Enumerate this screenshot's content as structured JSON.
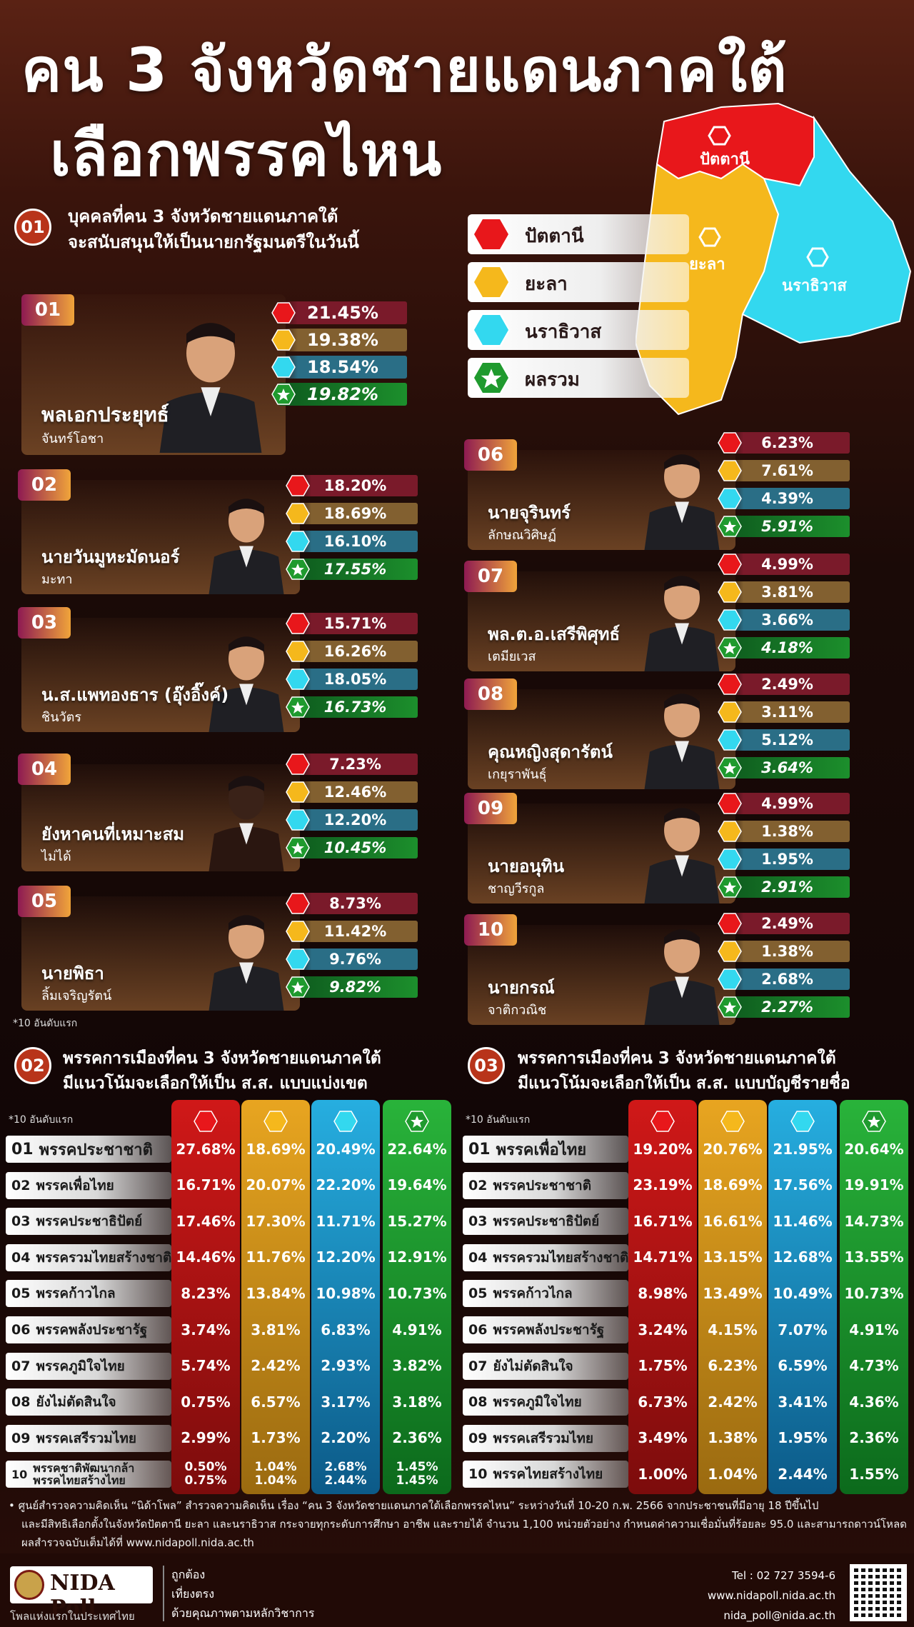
{
  "header": {
    "title_line1": "คน 3 จังหวัดชายแดนภาคใต้",
    "title_line2": "เลือกพรรคไหน"
  },
  "colors": {
    "pattani": "#e8171b",
    "yala": "#f5b81c",
    "narathiwat": "#33d8ef",
    "total": "#1f9a2e"
  },
  "map": {
    "labels": {
      "pattani": "ปัตตานี",
      "yala": "ยะลา",
      "narathiwat": "นราธิวาส"
    }
  },
  "legend": [
    {
      "name": "ปัตตานี",
      "icon": "red-hexagon-icon"
    },
    {
      "name": "ยะลา",
      "icon": "yellow-hexagon-icon"
    },
    {
      "name": "นราธิวาส",
      "icon": "cyan-hexagon-icon"
    },
    {
      "name": "ผลรวม",
      "icon": "green-star-hexagon-icon"
    }
  ],
  "section1": {
    "num": "01",
    "title_line1": "บุคคลที่คน 3 จังหวัดชายแดนภาคใต้",
    "title_line2": "จะสนับสนุนให้เป็นนายกรัฐมนตรีในวันนี้",
    "note": "*10 อันดับแรก"
  },
  "section2": {
    "num": "02",
    "title_line1": "พรรคการเมืองที่คน 3 จังหวัดชายแดนภาคใต้",
    "title_line2": "มีแนวโน้มจะเลือกให้เป็น ส.ส. แบบแบ่งเขต",
    "note": "*10 อันดับแรก"
  },
  "section3": {
    "num": "03",
    "title_line1": "พรรคการเมืองที่คน 3 จังหวัดชายแดนภาคใต้",
    "title_line2": "มีแนวโน้มจะเลือกให้เป็น ส.ส. แบบบัญชีรายชื่อ",
    "note": "*10 อันดับแรก"
  },
  "footer": {
    "line1": "• ศูนย์สำรวจความคิดเห็น “นิด้าโพล” สำรวจความคิดเห็น เรื่อง “คน 3 จังหวัดชายแดนภาคใต้เลือกพรรคไหน” ระหว่างวันที่ 10-20 ก.พ. 2566 จากประชาชนที่มีอายุ 18 ปีขึ้นไป",
    "line2": "และมีสิทธิเลือกตั้งในจังหวัดปัตตานี ยะลา และนราธิวาส กระจายทุกระดับการศึกษา อาชีพ และรายได้ จำนวน 1,100 หน่วยตัวอย่าง กำหนดค่าความเชื่อมั่นที่ร้อยละ  95.0 และสามารถดาวน์โหลด",
    "line3": "ผลสำรวจฉบับเต็มได้ที่ www.nidapoll.nida.ac.th",
    "brand": "NIDA Poll",
    "brand_tag": "โพลแห่งแรกในประเทศไทย",
    "slogan1": "ถูกต้อง",
    "slogan2": "เที่ยงตรง",
    "slogan3": "ด้วยคุณภาพตามหลักวิชาการ",
    "tel": "Tel : 02 727 3594-6",
    "web": "www.nidapoll.nida.ac.th",
    "email": "nida_poll@nida.ac.th"
  },
  "chart_data": [
    {
      "type": "bar",
      "title": "บุคคลที่คน 3 จังหวัดชายแดนภาคใต้ จะสนับสนุนให้เป็นนายกรัฐมนตรีในวันนี้",
      "series_names": [
        "ปัตตานี",
        "ยะลา",
        "นราธิวาส",
        "ผลรวม"
      ],
      "people": [
        {
          "rank": "01",
          "name": "พลเอกประยุทธ์",
          "surname": "จันทร์โอชา",
          "values": [
            "21.45%",
            "19.38%",
            "18.54%",
            "19.82%"
          ]
        },
        {
          "rank": "02",
          "name": "นายวันมูหะมัดนอร์",
          "surname": "มะทา",
          "values": [
            "18.20%",
            "18.69%",
            "16.10%",
            "17.55%"
          ]
        },
        {
          "rank": "03",
          "name": "น.ส.แพทองธาร (อุ๊งอิ๊งค์)",
          "surname": "ชินวัตร",
          "values": [
            "15.71%",
            "16.26%",
            "18.05%",
            "16.73%"
          ]
        },
        {
          "rank": "04",
          "name": "ยังหาคนที่เหมาะสม",
          "surname": "ไม่ได้",
          "values": [
            "7.23%",
            "12.46%",
            "12.20%",
            "10.45%"
          ]
        },
        {
          "rank": "05",
          "name": "นายพิธา",
          "surname": "ลิ้มเจริญรัตน์",
          "values": [
            "8.73%",
            "11.42%",
            "9.76%",
            "9.82%"
          ]
        },
        {
          "rank": "06",
          "name": "นายจุรินทร์",
          "surname": "ลักษณวิศิษฏ์",
          "values": [
            "6.23%",
            "7.61%",
            "4.39%",
            "5.91%"
          ]
        },
        {
          "rank": "07",
          "name": "พล.ต.อ.เสรีพิศุทธ์",
          "surname": "เตมียเวส",
          "values": [
            "4.99%",
            "3.81%",
            "3.66%",
            "4.18%"
          ]
        },
        {
          "rank": "08",
          "name": "คุณหญิงสุดารัตน์",
          "surname": "เกยุราพันธุ์",
          "values": [
            "2.49%",
            "3.11%",
            "5.12%",
            "3.64%"
          ]
        },
        {
          "rank": "09",
          "name": "นายอนุทิน",
          "surname": "ชาญวีรกูล",
          "values": [
            "4.99%",
            "1.38%",
            "1.95%",
            "2.91%"
          ]
        },
        {
          "rank": "10",
          "name": "นายกรณ์",
          "surname": "จาติกวณิช",
          "values": [
            "2.49%",
            "1.38%",
            "2.68%",
            "2.27%"
          ]
        }
      ]
    },
    {
      "type": "table",
      "title": "พรรคการเมืองที่คน 3 จังหวัดชายแดนภาคใต้ มีแนวโน้มจะเลือกให้เป็น ส.ส. แบบแบ่งเขต",
      "columns": [
        "ปัตตานี",
        "ยะลา",
        "นราธิวาส",
        "ผลรวม"
      ],
      "rows": [
        {
          "rank": "01",
          "party": "พรรคประชาชาติ",
          "values": [
            "27.68%",
            "18.69%",
            "20.49%",
            "22.64%"
          ]
        },
        {
          "rank": "02",
          "party": "พรรคเพื่อไทย",
          "values": [
            "16.71%",
            "20.07%",
            "22.20%",
            "19.64%"
          ]
        },
        {
          "rank": "03",
          "party": "พรรคประชาธิปัตย์",
          "values": [
            "17.46%",
            "17.30%",
            "11.71%",
            "15.27%"
          ]
        },
        {
          "rank": "04",
          "party": "พรรครวมไทยสร้างชาติ",
          "values": [
            "14.46%",
            "11.76%",
            "12.20%",
            "12.91%"
          ]
        },
        {
          "rank": "05",
          "party": "พรรคก้าวไกล",
          "values": [
            "8.23%",
            "13.84%",
            "10.98%",
            "10.73%"
          ]
        },
        {
          "rank": "06",
          "party": "พรรคพลังประชารัฐ",
          "values": [
            "3.74%",
            "3.81%",
            "6.83%",
            "4.91%"
          ]
        },
        {
          "rank": "07",
          "party": "พรรคภูมิใจไทย",
          "values": [
            "5.74%",
            "2.42%",
            "2.93%",
            "3.82%"
          ]
        },
        {
          "rank": "08",
          "party": "ยังไม่ตัดสินใจ",
          "values": [
            "0.75%",
            "6.57%",
            "3.17%",
            "3.18%"
          ]
        },
        {
          "rank": "09",
          "party": "พรรคเสรีรวมไทย",
          "values": [
            "2.99%",
            "1.73%",
            "2.20%",
            "2.36%"
          ]
        },
        {
          "rank": "10",
          "party": "พรรคชาติพัฒนากล้า",
          "party2": "พรรคไทยสร้างไทย",
          "values": [
            "0.50%",
            "1.04%",
            "2.68%",
            "1.45%"
          ],
          "values2": [
            "0.75%",
            "1.04%",
            "2.44%",
            "1.45%"
          ]
        }
      ]
    },
    {
      "type": "table",
      "title": "พรรคการเมืองที่คน 3 จังหวัดชายแดนภาคใต้ มีแนวโน้มจะเลือกให้เป็น ส.ส. แบบบัญชีรายชื่อ",
      "columns": [
        "ปัตตานี",
        "ยะลา",
        "นราธิวาส",
        "ผลรวม"
      ],
      "rows": [
        {
          "rank": "01",
          "party": "พรรคเพื่อไทย",
          "values": [
            "19.20%",
            "20.76%",
            "21.95%",
            "20.64%"
          ]
        },
        {
          "rank": "02",
          "party": "พรรคประชาชาติ",
          "values": [
            "23.19%",
            "18.69%",
            "17.56%",
            "19.91%"
          ]
        },
        {
          "rank": "03",
          "party": "พรรคประชาธิปัตย์",
          "values": [
            "16.71%",
            "16.61%",
            "11.46%",
            "14.73%"
          ]
        },
        {
          "rank": "04",
          "party": "พรรครวมไทยสร้างชาติ",
          "values": [
            "14.71%",
            "13.15%",
            "12.68%",
            "13.55%"
          ]
        },
        {
          "rank": "05",
          "party": "พรรคก้าวไกล",
          "values": [
            "8.98%",
            "13.49%",
            "10.49%",
            "10.73%"
          ]
        },
        {
          "rank": "06",
          "party": "พรรคพลังประชารัฐ",
          "values": [
            "3.24%",
            "4.15%",
            "7.07%",
            "4.91%"
          ]
        },
        {
          "rank": "07",
          "party": "ยังไม่ตัดสินใจ",
          "values": [
            "1.75%",
            "6.23%",
            "6.59%",
            "4.73%"
          ]
        },
        {
          "rank": "08",
          "party": "พรรคภูมิใจไทย",
          "values": [
            "6.73%",
            "2.42%",
            "3.41%",
            "4.36%"
          ]
        },
        {
          "rank": "09",
          "party": "พรรคเสรีรวมไทย",
          "values": [
            "3.49%",
            "1.38%",
            "1.95%",
            "2.36%"
          ]
        },
        {
          "rank": "10",
          "party": "พรรคไทยสร้างไทย",
          "values": [
            "1.00%",
            "1.04%",
            "2.44%",
            "1.55%"
          ]
        }
      ]
    }
  ]
}
